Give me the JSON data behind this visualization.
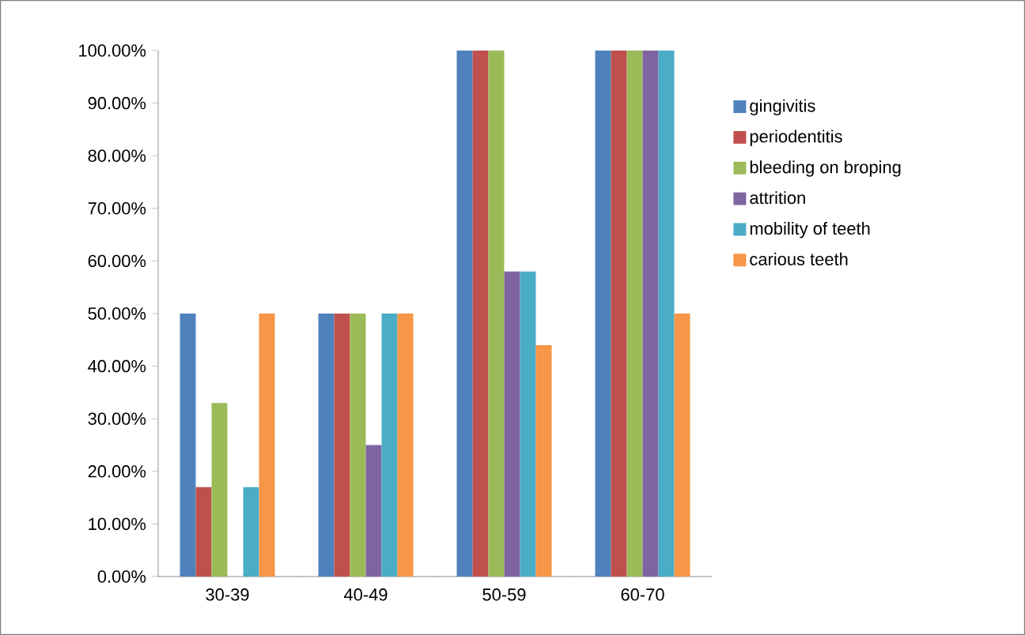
{
  "chart_data": {
    "type": "bar",
    "categories": [
      "30-39",
      "40-49",
      "50-59",
      "60-70"
    ],
    "series": [
      {
        "name": "gingivitis",
        "color": "#4f81bd",
        "values": [
          50,
          50,
          100,
          100
        ]
      },
      {
        "name": "periodentitis",
        "color": "#c0504d",
        "values": [
          17,
          50,
          100,
          100
        ]
      },
      {
        "name": "bleeding on broping",
        "color": "#9bbb59",
        "values": [
          33,
          50,
          100,
          100
        ]
      },
      {
        "name": "attrition",
        "color": "#8064a2",
        "values": [
          0,
          25,
          58,
          100
        ]
      },
      {
        "name": "mobility of teeth",
        "color": "#4bacc6",
        "values": [
          17,
          50,
          58,
          100
        ]
      },
      {
        "name": "carious teeth",
        "color": "#f79646",
        "values": [
          50,
          50,
          44,
          50
        ]
      }
    ],
    "ylim": [
      0,
      100
    ],
    "yticks": [
      {
        "value": 0,
        "label": "0.00%"
      },
      {
        "value": 10,
        "label": "10.00%"
      },
      {
        "value": 20,
        "label": "20.00%"
      },
      {
        "value": 30,
        "label": "30.00%"
      },
      {
        "value": 40,
        "label": "40.00%"
      },
      {
        "value": 50,
        "label": "50.00%"
      },
      {
        "value": 60,
        "label": "60.00%"
      },
      {
        "value": 70,
        "label": "70.00%"
      },
      {
        "value": 80,
        "label": "80.00%"
      },
      {
        "value": 90,
        "label": "90.00%"
      },
      {
        "value": 100,
        "label": "100.00%"
      }
    ],
    "grid": false,
    "legend": "right"
  }
}
